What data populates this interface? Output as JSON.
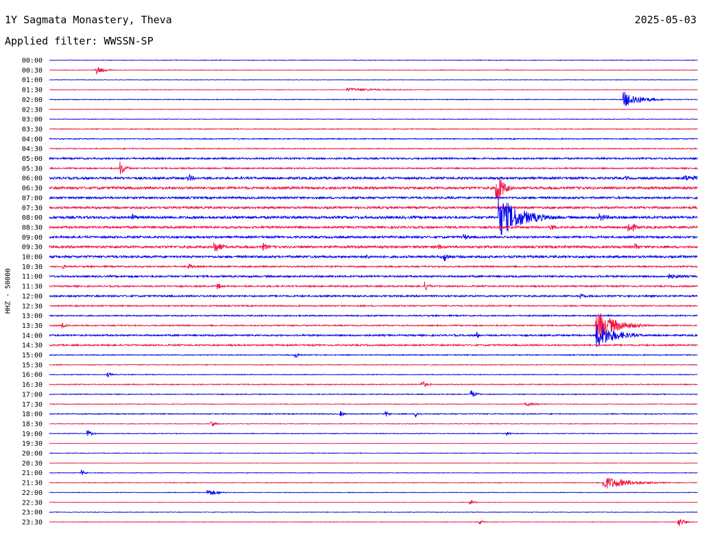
{
  "header": {
    "title": "1Y Sagmata Monastery, Theva",
    "date": "2025-05-03",
    "filter": "Applied filter: WWSSN-SP",
    "channel_label": "HHZ - 50000"
  },
  "colors": {
    "trace_a": "#0000ee",
    "trace_b": "#ee1144",
    "text": "#000000"
  },
  "chart_data": {
    "type": "line",
    "description_kind": "helicorder",
    "rows": [
      "00:00",
      "00:30",
      "01:00",
      "01:30",
      "02:00",
      "02:30",
      "03:00",
      "03:30",
      "04:00",
      "04:30",
      "05:00",
      "05:30",
      "06:00",
      "06:30",
      "07:00",
      "07:30",
      "08:00",
      "08:30",
      "09:00",
      "09:30",
      "10:00",
      "10:30",
      "11:00",
      "11:30",
      "12:00",
      "12:30",
      "13:00",
      "13:30",
      "14:00",
      "14:30",
      "15:00",
      "15:30",
      "16:00",
      "16:30",
      "17:00",
      "17:30",
      "18:00",
      "18:30",
      "19:00",
      "19:30",
      "20:00",
      "20:30",
      "21:00",
      "21:30",
      "22:00",
      "22:30",
      "23:00",
      "23:30"
    ],
    "row_noise": [
      0.4,
      0.4,
      0.3,
      0.4,
      0.5,
      0.4,
      0.4,
      0.6,
      0.7,
      0.7,
      1.2,
      1.0,
      1.6,
      1.8,
      1.5,
      1.6,
      1.8,
      1.6,
      1.5,
      1.7,
      1.6,
      1.1,
      1.3,
      1.1,
      1.2,
      0.9,
      0.9,
      0.9,
      1.2,
      1.1,
      0.7,
      0.6,
      0.5,
      0.7,
      0.6,
      0.5,
      0.7,
      0.5,
      0.5,
      0.3,
      0.4,
      0.3,
      0.4,
      0.5,
      0.4,
      0.3,
      0.4,
      0.4
    ],
    "events": [
      {
        "row": 1,
        "t": 0.072,
        "amp": 6,
        "dur": 0.012
      },
      {
        "row": 1,
        "t": 0.705,
        "amp": 2,
        "dur": 0.006
      },
      {
        "row": 3,
        "t": 0.46,
        "amp": 2.5,
        "dur": 0.06
      },
      {
        "row": 4,
        "t": 0.887,
        "amp": 12,
        "dur": 0.025
      },
      {
        "row": 11,
        "t": 0.11,
        "amp": 10,
        "dur": 0.008
      },
      {
        "row": 12,
        "t": 0.215,
        "amp": 6,
        "dur": 0.008
      },
      {
        "row": 12,
        "t": 0.89,
        "amp": 4,
        "dur": 0.006
      },
      {
        "row": 12,
        "t": 0.98,
        "amp": 5,
        "dur": 0.03
      },
      {
        "row": 13,
        "t": 0.69,
        "amp": 28,
        "dur": 0.01
      },
      {
        "row": 16,
        "t": 0.13,
        "amp": 5,
        "dur": 0.008
      },
      {
        "row": 16,
        "t": 0.695,
        "amp": 30,
        "dur": 0.035
      },
      {
        "row": 16,
        "t": 0.85,
        "amp": 6,
        "dur": 0.015
      },
      {
        "row": 17,
        "t": 0.895,
        "amp": 9,
        "dur": 0.01
      },
      {
        "row": 17,
        "t": 0.775,
        "amp": 5,
        "dur": 0.01
      },
      {
        "row": 18,
        "t": 0.64,
        "amp": 5,
        "dur": 0.008
      },
      {
        "row": 19,
        "t": 0.255,
        "amp": 10,
        "dur": 0.012
      },
      {
        "row": 19,
        "t": 0.33,
        "amp": 6,
        "dur": 0.01
      },
      {
        "row": 19,
        "t": 0.6,
        "amp": 5,
        "dur": 0.006
      },
      {
        "row": 19,
        "t": 0.905,
        "amp": 6,
        "dur": 0.006
      },
      {
        "row": 20,
        "t": 0.61,
        "amp": 7,
        "dur": 0.008
      },
      {
        "row": 20,
        "t": 0.49,
        "amp": 4,
        "dur": 0.006
      },
      {
        "row": 21,
        "t": 0.02,
        "amp": 4,
        "dur": 0.006
      },
      {
        "row": 21,
        "t": 0.215,
        "amp": 5,
        "dur": 0.006
      },
      {
        "row": 22,
        "t": 0.955,
        "amp": 4,
        "dur": 0.03
      },
      {
        "row": 23,
        "t": 0.26,
        "amp": 5,
        "dur": 0.006
      },
      {
        "row": 23,
        "t": 0.58,
        "amp": 7,
        "dur": 0.006
      },
      {
        "row": 24,
        "t": 0.82,
        "amp": 4,
        "dur": 0.01
      },
      {
        "row": 27,
        "t": 0.02,
        "amp": 5,
        "dur": 0.008
      },
      {
        "row": 27,
        "t": 0.845,
        "amp": 22,
        "dur": 0.03
      },
      {
        "row": 28,
        "t": 0.845,
        "amp": 18,
        "dur": 0.03
      },
      {
        "row": 28,
        "t": 0.66,
        "amp": 5,
        "dur": 0.006
      },
      {
        "row": 30,
        "t": 0.38,
        "amp": 5,
        "dur": 0.006
      },
      {
        "row": 32,
        "t": 0.09,
        "amp": 4,
        "dur": 0.006
      },
      {
        "row": 33,
        "t": 0.575,
        "amp": 6,
        "dur": 0.008
      },
      {
        "row": 34,
        "t": 0.65,
        "amp": 7,
        "dur": 0.008
      },
      {
        "row": 35,
        "t": 0.735,
        "amp": 3,
        "dur": 0.02
      },
      {
        "row": 36,
        "t": 0.45,
        "amp": 4,
        "dur": 0.006
      },
      {
        "row": 36,
        "t": 0.52,
        "amp": 4,
        "dur": 0.006
      },
      {
        "row": 36,
        "t": 0.565,
        "amp": 5,
        "dur": 0.006
      },
      {
        "row": 37,
        "t": 0.25,
        "amp": 6,
        "dur": 0.006
      },
      {
        "row": 38,
        "t": 0.06,
        "amp": 5,
        "dur": 0.006
      },
      {
        "row": 38,
        "t": 0.705,
        "amp": 4,
        "dur": 0.006
      },
      {
        "row": 42,
        "t": 0.05,
        "amp": 4,
        "dur": 0.006
      },
      {
        "row": 43,
        "t": 0.855,
        "amp": 10,
        "dur": 0.04
      },
      {
        "row": 44,
        "t": 0.245,
        "amp": 5,
        "dur": 0.015
      },
      {
        "row": 45,
        "t": 0.65,
        "amp": 4,
        "dur": 0.006
      },
      {
        "row": 47,
        "t": 0.972,
        "amp": 7,
        "dur": 0.008
      },
      {
        "row": 47,
        "t": 0.665,
        "amp": 3,
        "dur": 0.006
      }
    ]
  }
}
